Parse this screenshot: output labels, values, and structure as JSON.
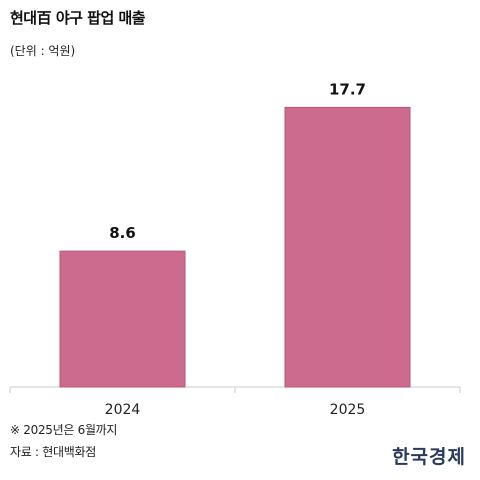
{
  "header": {
    "title": "현대百 야구 팝업 매출",
    "unit": "(단위 : 억원)"
  },
  "footer": {
    "note": "※ 2025년은 6월까지",
    "source": "자료 : 현대백화점",
    "brand": "한국경제"
  },
  "colors": {
    "bar": "#cc6b8e",
    "bar_stroke": "#b9557b",
    "axis": "#cccccc"
  },
  "chart_data": {
    "type": "bar",
    "categories": [
      "2024",
      "2025"
    ],
    "values": [
      8.6,
      17.7
    ],
    "value_labels": [
      "8.6",
      "17.7"
    ],
    "title": "현대百 야구 팝업 매출",
    "xlabel": "",
    "ylabel": "",
    "ylim": [
      0,
      20.7
    ],
    "grid": false,
    "legend": "none"
  }
}
